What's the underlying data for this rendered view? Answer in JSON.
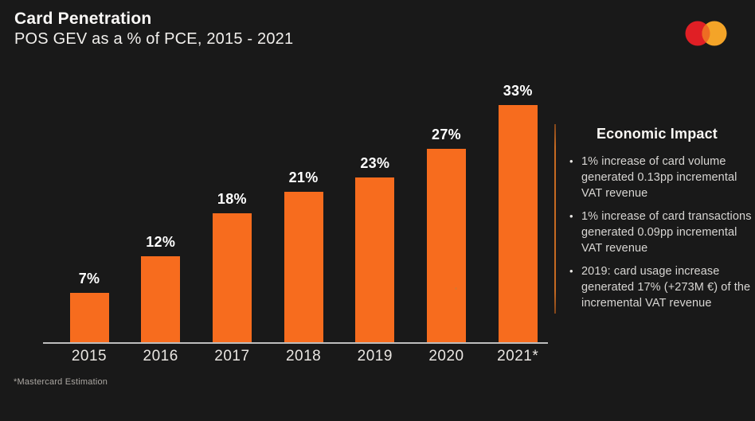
{
  "page": {
    "background": "#191919"
  },
  "header": {
    "title": "Card Penetration",
    "subtitle": "POS GEV as a % of PCE, 2015 - 2021"
  },
  "logo": {
    "name": "mastercard-logo",
    "red": "#E01F25",
    "yellow": "#F4A428",
    "overlap": "#EE6C23"
  },
  "chart_data": {
    "type": "bar",
    "title": "Card Penetration",
    "subtitle": "POS GEV as a % of PCE, 2015 - 2021",
    "categories": [
      "2015",
      "2016",
      "2017",
      "2018",
      "2019",
      "2020",
      "2021*"
    ],
    "values": [
      7,
      12,
      18,
      21,
      23,
      27,
      33
    ],
    "value_labels": [
      "7%",
      "12%",
      "18%",
      "21%",
      "23%",
      "27%",
      "33%"
    ],
    "xlabel": "",
    "ylabel": "POS GEV as a % of PCE",
    "ylim": [
      0,
      35
    ],
    "grid": false,
    "legend": false,
    "bar_color": "#F76C1E",
    "value_label_color": "#FFFFFF",
    "axis_line_color": "#BDBDBD"
  },
  "economic_impact": {
    "heading": "Economic Impact",
    "accent_color": "#C56A22",
    "bullets": [
      "1% increase of card volume generated 0.13pp incremental VAT revenue",
      "1% increase of card transactions generated 0.09pp incremental VAT revenue",
      "2019: card usage increase generated 17% (+273M €) of the incremental VAT revenue"
    ]
  },
  "footnote": "*Mastercard Estimation"
}
